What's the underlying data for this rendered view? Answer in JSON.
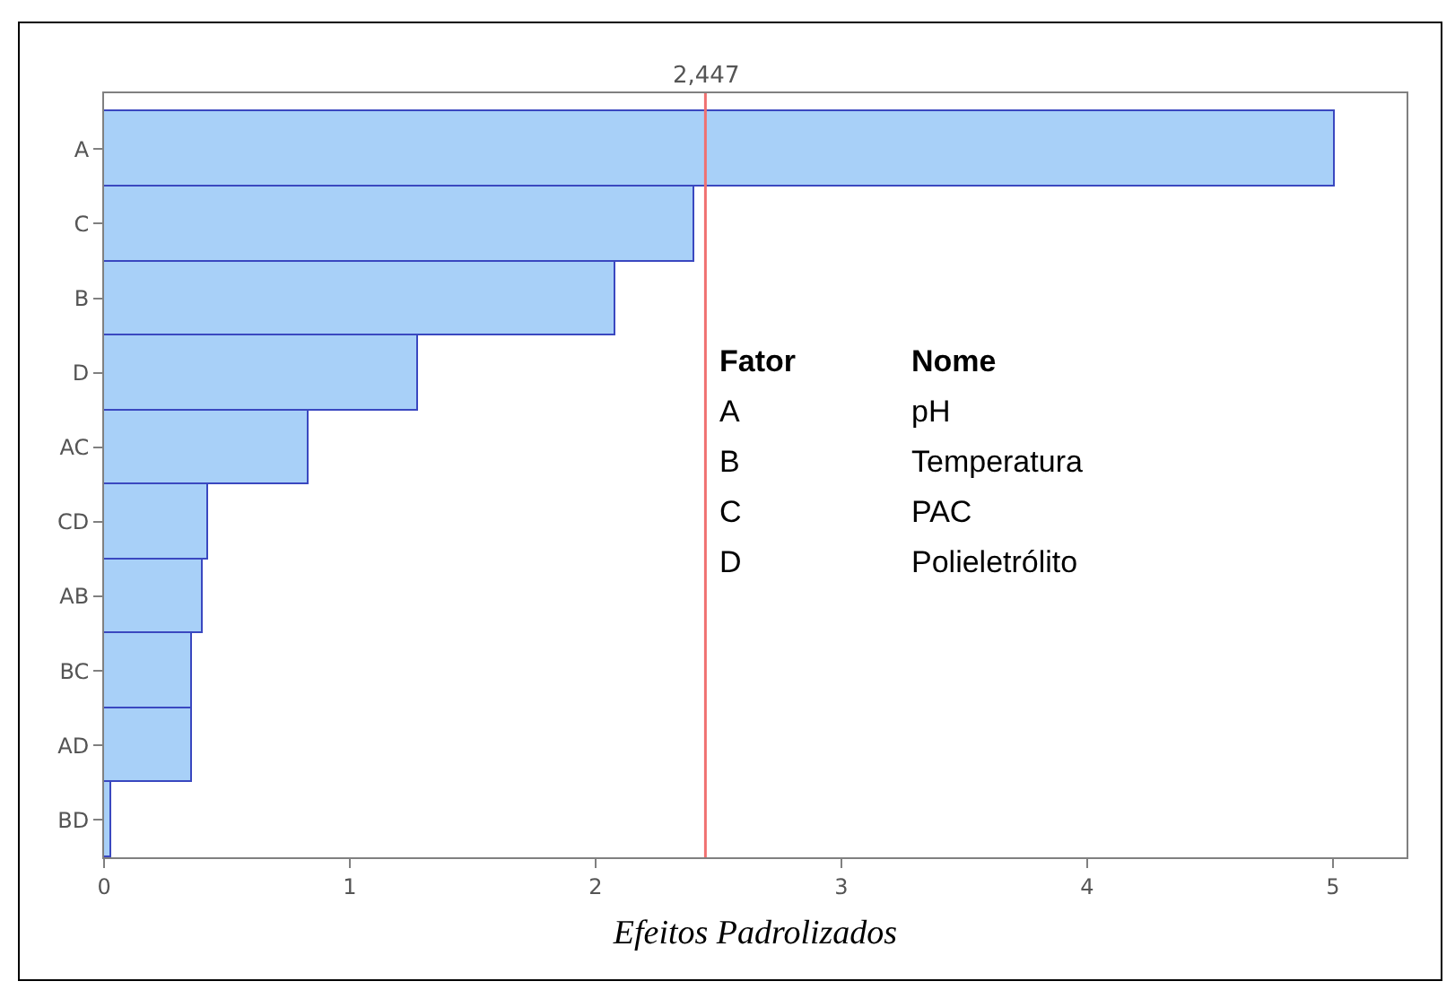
{
  "chart_data": {
    "type": "bar",
    "orientation": "horizontal",
    "categories": [
      "A",
      "C",
      "B",
      "D",
      "AC",
      "CD",
      "AB",
      "BC",
      "AD",
      "BD"
    ],
    "values": [
      5.01,
      2.4,
      2.08,
      1.28,
      0.83,
      0.42,
      0.4,
      0.36,
      0.36,
      0.03
    ],
    "color": "#a8d0f8",
    "xlim": [
      0,
      5.3
    ],
    "xticks": [
      0,
      1,
      2,
      3,
      4,
      5
    ],
    "xlabel": "Efeitos Padrolizados",
    "ref_lines": [
      {
        "axis": "x",
        "value": 2.447,
        "label": "2,447",
        "color": "#f07070"
      }
    ],
    "annotations": [
      "Fator",
      "Nome",
      "A",
      "pH",
      "B",
      "Temperatura",
      "C",
      "PAC",
      "D",
      "Polieletrólito"
    ],
    "grid": false
  }
}
